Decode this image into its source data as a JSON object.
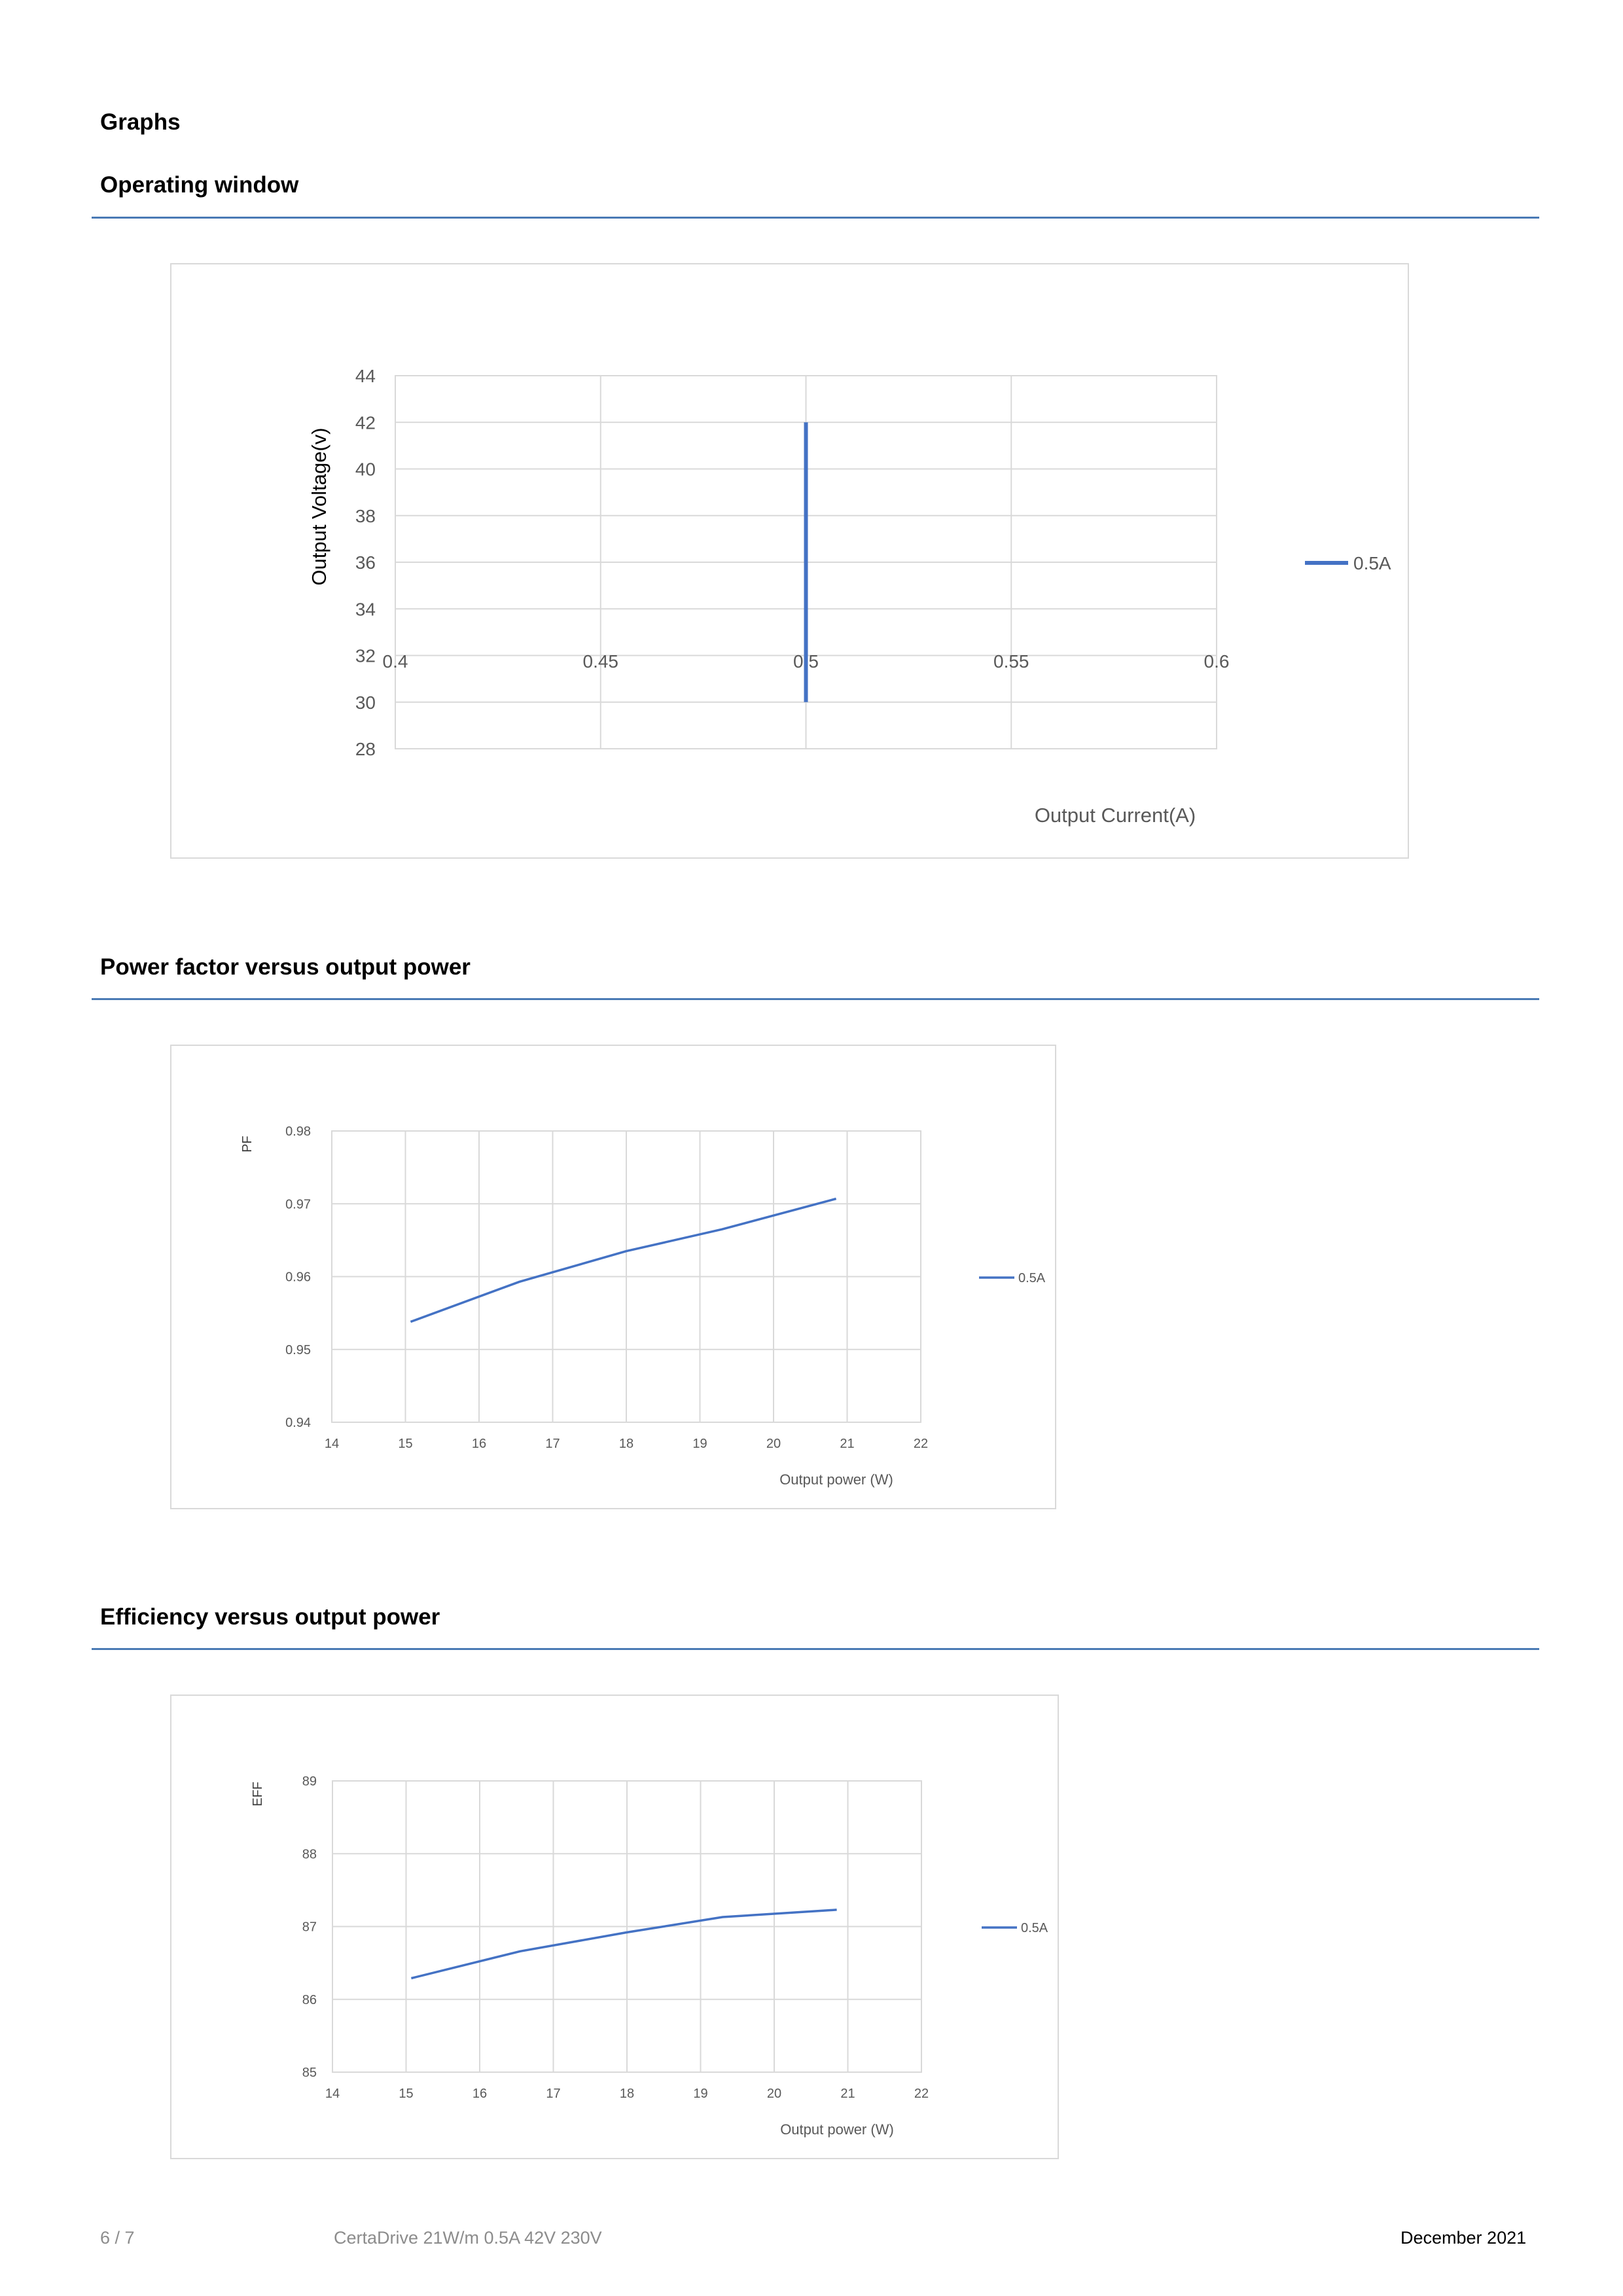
{
  "headings": {
    "graphs": "Graphs",
    "operating_window": "Operating window",
    "power_factor": "Power factor versus output power",
    "efficiency": "Efficiency versus output power"
  },
  "colors": {
    "accent": "#4a7ab5",
    "series": "#4472c4",
    "grid": "#d9d9d9",
    "axis_text": "#595959"
  },
  "chart_data": [
    {
      "id": "operating-window",
      "type": "line",
      "title": "",
      "xlabel": "Output Current(A)",
      "ylabel": "Output Voltage(v)",
      "xlim": [
        0.4,
        0.6
      ],
      "ylim": [
        28,
        44
      ],
      "xticks": [
        0.4,
        0.45,
        0.5,
        0.55,
        0.6
      ],
      "yticks": [
        28,
        30,
        32,
        34,
        36,
        38,
        40,
        42,
        44
      ],
      "xtick_labels": [
        "0.4",
        "0.45",
        "0.5",
        "0.55",
        "0.6"
      ],
      "ytick_labels": [
        "28",
        "30",
        "32",
        "34",
        "36",
        "38",
        "40",
        "42",
        "44"
      ],
      "grid": true,
      "legend": "right",
      "series": [
        {
          "name": "0.5A",
          "x": [
            0.5,
            0.5
          ],
          "y": [
            30,
            42
          ]
        }
      ]
    },
    {
      "id": "power-factor",
      "type": "line",
      "title": "",
      "xlabel": "Output power (W)",
      "ylabel": "PF",
      "xlim": [
        14,
        22
      ],
      "ylim": [
        0.94,
        0.98
      ],
      "xticks": [
        14,
        15,
        16,
        17,
        18,
        19,
        20,
        21,
        22
      ],
      "yticks": [
        0.94,
        0.95,
        0.96,
        0.97,
        0.98
      ],
      "xtick_labels": [
        "14",
        "15",
        "16",
        "17",
        "18",
        "19",
        "20",
        "21",
        "22"
      ],
      "ytick_labels": [
        "0.94",
        "0.95",
        "0.96",
        "0.97",
        "0.98"
      ],
      "grid": true,
      "legend": "right",
      "series": [
        {
          "name": "0.5A",
          "x": [
            15.07,
            16.55,
            18.0,
            19.3,
            20.85
          ],
          "y": [
            0.9538,
            0.9593,
            0.9635,
            0.9665,
            0.9707
          ]
        }
      ]
    },
    {
      "id": "efficiency",
      "type": "line",
      "title": "",
      "xlabel": "Output power (W)",
      "ylabel": "EFF",
      "xlim": [
        14,
        22
      ],
      "ylim": [
        85,
        89
      ],
      "xticks": [
        14,
        15,
        16,
        17,
        18,
        19,
        20,
        21,
        22
      ],
      "yticks": [
        85,
        86,
        87,
        88,
        89
      ],
      "xtick_labels": [
        "14",
        "15",
        "16",
        "17",
        "18",
        "19",
        "20",
        "21",
        "22"
      ],
      "ytick_labels": [
        "85",
        "86",
        "87",
        "88",
        "89"
      ],
      "grid": true,
      "legend": "right",
      "series": [
        {
          "name": "0.5A",
          "x": [
            15.07,
            16.55,
            18.0,
            19.3,
            20.85
          ],
          "y": [
            86.29,
            86.66,
            86.92,
            87.13,
            87.23
          ]
        }
      ]
    }
  ],
  "footer": {
    "page": "6 / 7",
    "product": "CertaDrive 21W/m 0.5A 42V 230V",
    "date": "December 2021"
  }
}
